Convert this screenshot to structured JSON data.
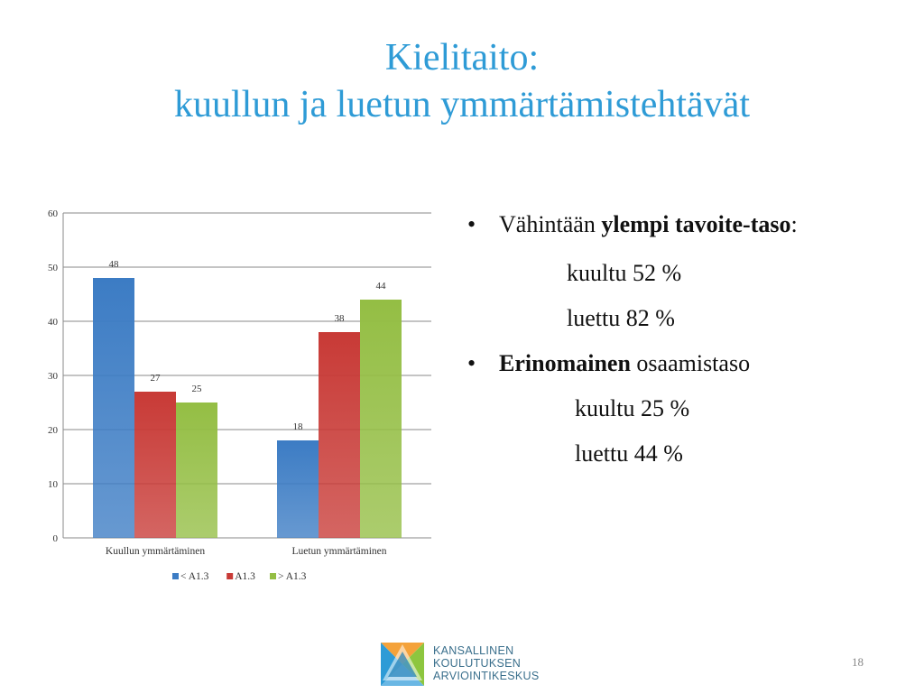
{
  "slide": {
    "title_line1": "Kielitaito:",
    "title_line2": "kuullun ja luetun ymmärtämistehtävät",
    "page_number": "18"
  },
  "bullets": {
    "item1_pre": "Vähintään ",
    "item1_bold": "ylempi tavoite-taso",
    "item1_post": ":",
    "item1_sub1": "kuultu 52 %",
    "item1_sub2": "luettu 82 %",
    "item2_bold": "Erinomainen",
    "item2_post": " osaamistaso",
    "item2_sub1": "kuultu 25 %",
    "item2_sub2": "luettu 44 %"
  },
  "logo": {
    "line1": "KANSALLINEN",
    "line2": "KOULUTUKSEN",
    "line3": "ARVIOINTIKESKUS"
  },
  "chart_data": {
    "type": "bar",
    "categories": [
      "Kuullun ymmärtäminen",
      "Luetun ymmärtäminen"
    ],
    "series": [
      {
        "name": "< A1.3",
        "values": [
          48,
          18
        ],
        "color": "#3C7CC4"
      },
      {
        "name": "A1.3",
        "values": [
          27,
          38
        ],
        "color": "#C83A36"
      },
      {
        "name": "> A1.3",
        "values": [
          25,
          44
        ],
        "color": "#94BE44"
      }
    ],
    "ylim": [
      0,
      60
    ],
    "yticks": [
      0,
      10,
      20,
      30,
      40,
      50,
      60
    ],
    "grid": true,
    "legend": "bottom",
    "data_labels": true
  }
}
